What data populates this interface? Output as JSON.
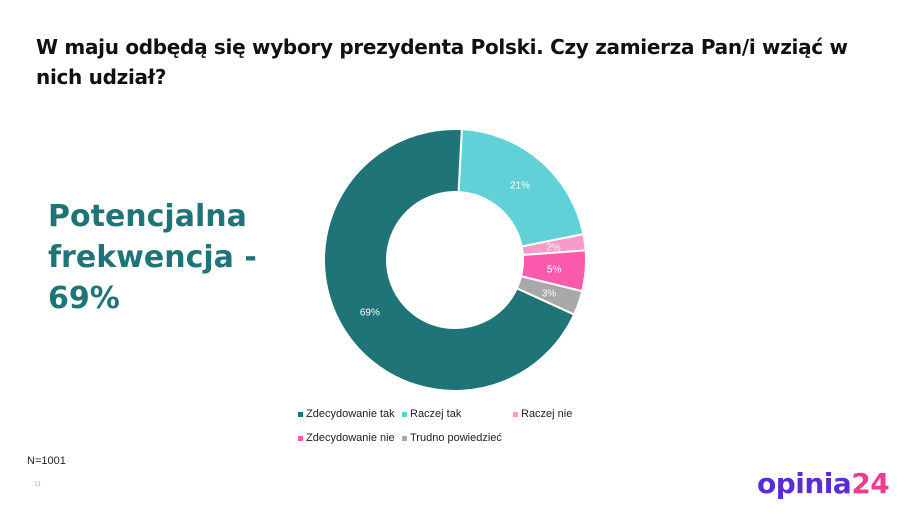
{
  "title": "W maju odbędą się wybory prezydenta Polski. Czy zamierza Pan/i wziąć w nich udział?",
  "highlight": {
    "line1": "Potencjalna",
    "line2": "frekwencja -",
    "line3": "69%",
    "color": "#1f7478"
  },
  "sample": "N=1001",
  "page_number": "11",
  "logo": {
    "part1": "opinia",
    "part2": "24",
    "color1": "#5b2bd6",
    "color2": "#ee3c8f"
  },
  "chart_data": {
    "type": "pie",
    "subtype": "donut",
    "title": "W maju odbędą się wybory prezydenta Polski. Czy zamierza Pan/i wziąć w nich udział?",
    "categories": [
      "Zdecydowanie tak",
      "Raczej tak",
      "Raczej nie",
      "Zdecydowanie nie",
      "Trudno powiedzieć"
    ],
    "values": [
      69,
      21,
      2,
      5,
      3
    ],
    "labels": [
      "69%",
      "21%",
      "2%",
      "5%",
      "3%"
    ],
    "colors": [
      "#1f7478",
      "#5fd1d7",
      "#f99ac9",
      "#fb5aad",
      "#a9a7a7"
    ],
    "drawing_order": [
      1,
      2,
      3,
      4,
      0
    ],
    "start_angle_deg": 3,
    "legend_position": "bottom",
    "unit": "%"
  },
  "legend": {
    "rows": [
      [
        {
          "label": "Zdecydowanie tak",
          "color": "#1f7478"
        },
        {
          "label": "Raczej tak",
          "color": "#5fd1d7"
        },
        {
          "label": "Raczej nie",
          "color": "#f99ac9"
        }
      ],
      [
        {
          "label": "Zdecydowanie nie",
          "color": "#fb5aad"
        },
        {
          "label": "Trudno powiedzieć",
          "color": "#a9a7a7"
        }
      ]
    ]
  }
}
